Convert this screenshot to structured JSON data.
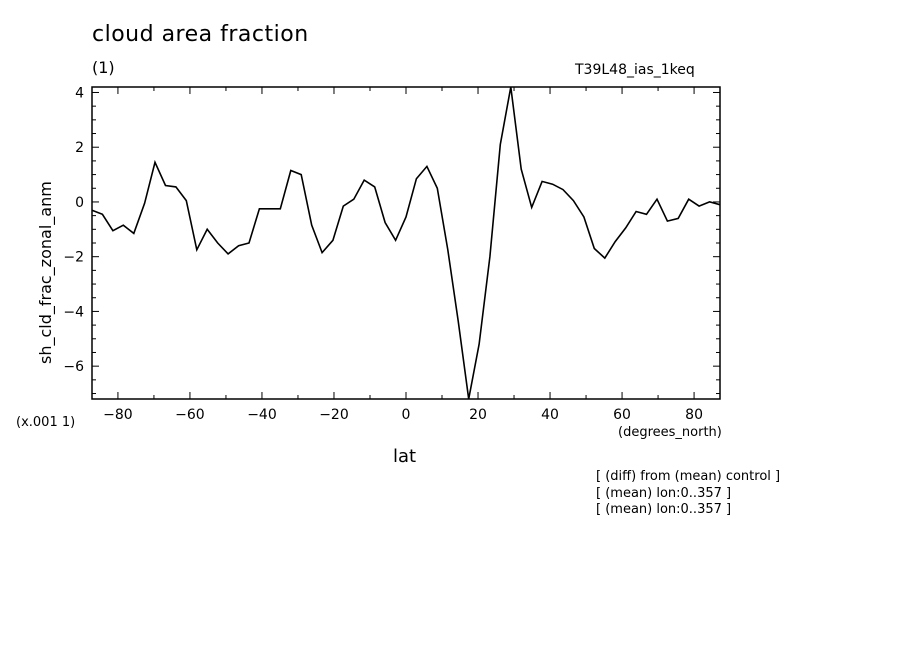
{
  "title": "cloud area fraction",
  "units": "(1)",
  "run_id": "T39L48_ias_1keq",
  "scale_note": "(x.001 1)",
  "notes": [
    "[ (diff) from (mean) control ]",
    "[ (mean) lon:0..357 ]",
    "[ (mean) lon:0..357 ]"
  ],
  "chart_data": {
    "type": "line",
    "title": "cloud area fraction",
    "xlabel": "lat",
    "xunits": "(degrees_north)",
    "ylabel": "sh_cld_frac_zonal_anm",
    "xlim": [
      -87.2,
      87.2
    ],
    "ylim": [
      -7.2,
      4.2
    ],
    "xticks": [
      -80,
      -60,
      -40,
      -20,
      0,
      20,
      40,
      60,
      80
    ],
    "xtick_labels": [
      "−80",
      "−60",
      "−40",
      "−20",
      "0",
      "20",
      "40",
      "60",
      "80"
    ],
    "yticks": [
      -6,
      -4,
      -2,
      0,
      2,
      4
    ],
    "ytick_labels": [
      "−6",
      "−4",
      "−2",
      "0",
      "2",
      "4"
    ],
    "grid": false,
    "series": [
      {
        "x": [
          -87.2,
          -84.3,
          -81.4,
          -78.5,
          -75.6,
          -72.6,
          -69.7,
          -66.8,
          -63.9,
          -61.0,
          -58.1,
          -55.2,
          -52.3,
          -49.4,
          -46.5,
          -43.6,
          -40.7,
          -37.8,
          -34.9,
          -32.0,
          -29.1,
          -26.2,
          -23.3,
          -20.3,
          -17.4,
          -14.5,
          -11.6,
          -8.7,
          -5.8,
          -2.9,
          0.0,
          2.9,
          5.8,
          8.7,
          11.6,
          14.5,
          17.4,
          20.3,
          23.3,
          26.2,
          29.1,
          32.0,
          34.9,
          37.8,
          40.7,
          43.6,
          46.5,
          49.4,
          52.3,
          55.2,
          58.1,
          61.0,
          63.9,
          66.8,
          69.7,
          72.6,
          75.6,
          78.5,
          81.4,
          84.3,
          87.2
        ],
        "values": [
          -0.3,
          -0.45,
          -1.05,
          -0.85,
          -1.15,
          -0.05,
          1.45,
          0.6,
          0.55,
          0.05,
          -1.75,
          -1.0,
          -1.5,
          -1.9,
          -1.6,
          -1.5,
          -0.25,
          -0.25,
          -0.25,
          1.15,
          1.0,
          -0.85,
          -1.85,
          -1.4,
          -0.15,
          0.1,
          0.8,
          0.55,
          -0.75,
          -1.4,
          -0.55,
          0.85,
          1.3,
          0.5,
          -1.75,
          -4.35,
          -7.2,
          -5.2,
          -2.0,
          2.1,
          4.2,
          1.2,
          -0.2,
          0.75,
          0.65,
          0.45,
          0.05,
          -0.55,
          -1.7,
          -2.05,
          -1.45,
          -0.95,
          -0.35,
          -0.45,
          0.1,
          -0.7,
          -0.6,
          0.1,
          -0.15,
          0.0,
          -0.1
        ]
      }
    ]
  }
}
